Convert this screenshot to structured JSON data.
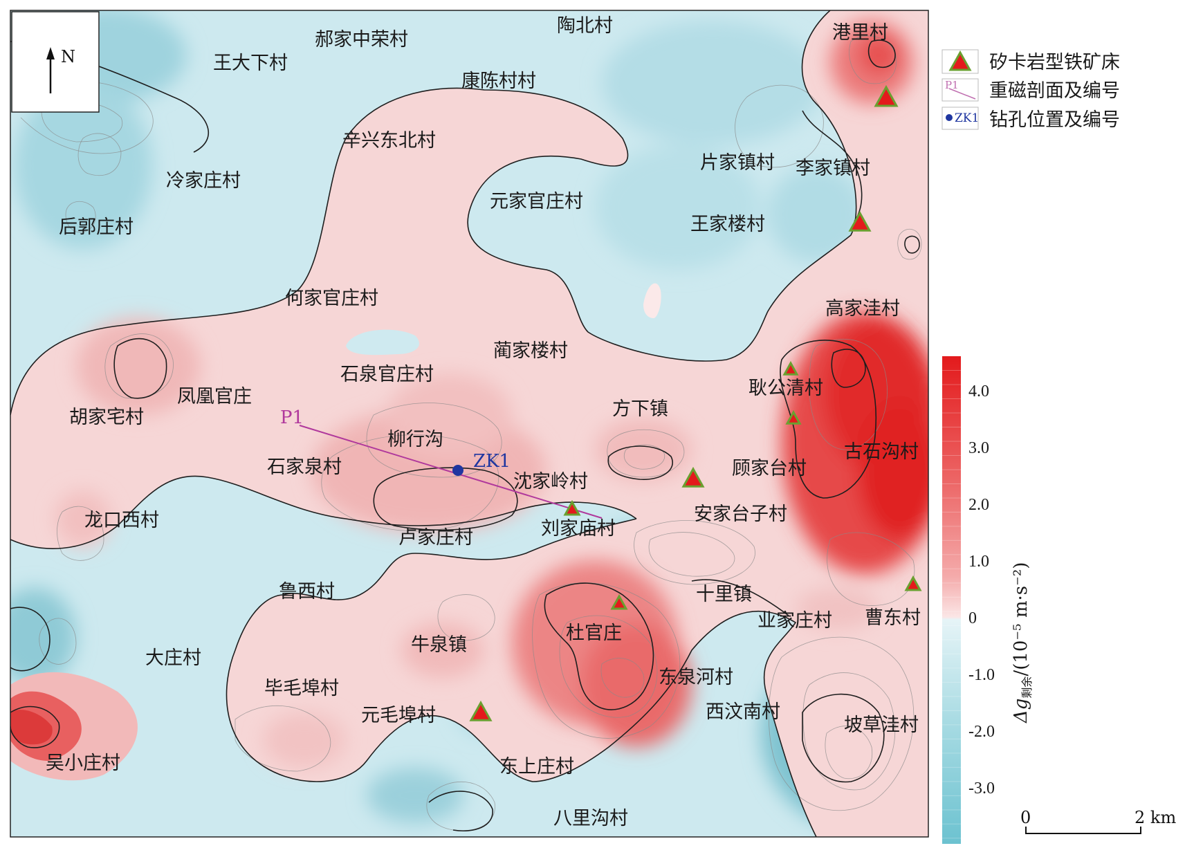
{
  "north_arrow": {
    "label": "N"
  },
  "profile": {
    "label": "P1",
    "color": "#b0389c"
  },
  "drillhole": {
    "label": "ZK1",
    "color": "#1f36a0"
  },
  "places": [
    "郝家中荣村",
    "王大下村",
    "陶北村",
    "港里村",
    "康陈村村",
    "辛兴东北村",
    "冷家庄村",
    "后郭庄村",
    "元家官庄村",
    "片家镇村",
    "李家镇村",
    "王家楼村",
    "何家官庄村",
    "高家洼村",
    "蔺家楼村",
    "石泉官庄村",
    "耿公清村",
    "凤凰官庄",
    "胡家宅村",
    "方下镇",
    "柳行沟",
    "古石沟村",
    "石家泉村",
    "沈家岭村",
    "顾家台村",
    "龙口西村",
    "安家台子村",
    "卢家庄村",
    "刘家庙村",
    "鲁西村",
    "十里镇",
    "业家庄村",
    "曹东村",
    "大庄村",
    "牛泉镇",
    "杜官庄",
    "毕毛埠村",
    "东泉河村",
    "元毛埠村",
    "西汶南村",
    "坡草洼村",
    "吴小庄村",
    "东上庄村",
    "八里沟村"
  ],
  "legend": [
    {
      "icon": "triangle-icon",
      "label": "矽卡岩型铁矿床"
    },
    {
      "icon": "profile-line-icon",
      "swatch_text": "P1",
      "label": "重磁剖面及编号"
    },
    {
      "icon": "drillhole-dot-icon",
      "swatch_text": "ZK1",
      "label": "钻孔位置及编号"
    }
  ],
  "colorbar": {
    "label_prefix": "Δg",
    "label_subscript": "剩余",
    "label_unit": "/(10⁻⁵ m·s⁻²)",
    "ticks": [
      "4.0",
      "3.0",
      "2.0",
      "1.0",
      "0",
      "-1.0",
      "-2.0",
      "-3.0"
    ],
    "tick_values": [
      4.0,
      3.0,
      2.0,
      1.0,
      0,
      -1.0,
      -2.0,
      -3.0
    ],
    "range": [
      -4.0,
      4.6
    ],
    "color_max": "#e31a1c",
    "color_zero": "#fbe6e6",
    "color_min": "#6cc2d0"
  },
  "scale_bar": {
    "start": "0",
    "end": "2 km"
  }
}
